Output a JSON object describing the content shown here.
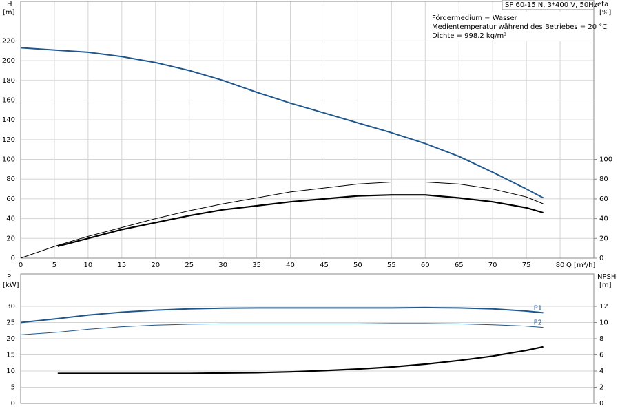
{
  "chart_data": [
    {
      "type": "line",
      "ylabel": "H",
      "yunit": "[m]",
      "y2label": "eta",
      "y2unit": "[%]",
      "xlabel": "Q [m³/h]",
      "info_title": "SP 60-15 N, 3*400 V, 50Hz",
      "info_lines": [
        "Fördermedium = Wasser",
        "Medientemperatur während des Betriebes = 20 °C",
        "Dichte = 998.2 kg/m³"
      ],
      "x": [
        0,
        5.5,
        10,
        15,
        20,
        25,
        30,
        35,
        40,
        45,
        50,
        55,
        60,
        65,
        70,
        75,
        77.5
      ],
      "xlim": [
        0,
        85
      ],
      "xticks": [
        0,
        5,
        10,
        15,
        20,
        25,
        30,
        35,
        40,
        45,
        50,
        55,
        60,
        65,
        70,
        75,
        80
      ],
      "ylim": [
        0,
        260
      ],
      "yticks": [
        0,
        20,
        40,
        60,
        80,
        100,
        120,
        140,
        160,
        180,
        200,
        220
      ],
      "y2lim": [
        0,
        260
      ],
      "y2ticks": [
        0,
        20,
        40,
        60,
        80,
        100
      ],
      "grid": true,
      "series": [
        {
          "color": "#1f568c",
          "line_width": 2,
          "values": [
            213,
            210.5,
            208.5,
            204,
            198,
            190,
            180,
            168,
            157,
            147,
            137,
            127,
            116,
            103,
            87,
            70,
            61
          ]
        },
        {
          "color": "#000000",
          "line_width": 1,
          "axis": "y2",
          "values": [
            0,
            13,
            22,
            31,
            40,
            48,
            55,
            61,
            67,
            71,
            75,
            77,
            77,
            75,
            70,
            62,
            55
          ]
        },
        {
          "color": "#000000",
          "line_width": 2.2,
          "axis": "y2",
          "values": [
            null,
            12,
            20,
            29,
            36,
            43,
            49,
            53,
            57,
            60,
            63,
            64,
            64,
            61,
            57,
            51,
            46
          ]
        }
      ]
    },
    {
      "type": "line",
      "ylabel": "P",
      "yunit": "[kW]",
      "y2label": "NPSH",
      "y2unit": "[m]",
      "x": [
        0,
        5.5,
        10,
        15,
        20,
        25,
        30,
        35,
        40,
        45,
        50,
        55,
        60,
        65,
        70,
        75,
        77.5
      ],
      "xlim": [
        0,
        85
      ],
      "ylim": [
        0,
        40
      ],
      "yticks": [
        0,
        5,
        10,
        15,
        20,
        25,
        30
      ],
      "y2lim": [
        0,
        16
      ],
      "y2ticks": [
        0,
        2,
        4,
        6,
        8,
        10,
        12
      ],
      "grid": true,
      "series": [
        {
          "name": "P1",
          "color": "#1f568c",
          "line_width": 2,
          "values": [
            25,
            26.2,
            27.3,
            28.2,
            28.8,
            29.2,
            29.4,
            29.5,
            29.5,
            29.5,
            29.5,
            29.5,
            29.6,
            29.5,
            29.2,
            28.5,
            28.0
          ]
        },
        {
          "name": "P2",
          "color": "#1f568c",
          "line_width": 1,
          "values": [
            21.2,
            22,
            22.9,
            23.7,
            24.2,
            24.5,
            24.6,
            24.6,
            24.6,
            24.6,
            24.6,
            24.7,
            24.7,
            24.6,
            24.3,
            23.9,
            23.5
          ]
        },
        {
          "color": "#000000",
          "line_width": 2.2,
          "axis": "y2",
          "values": [
            null,
            3.7,
            3.7,
            3.7,
            3.7,
            3.7,
            3.75,
            3.8,
            3.9,
            4.05,
            4.25,
            4.5,
            4.85,
            5.3,
            5.85,
            6.55,
            7.0
          ]
        }
      ]
    }
  ]
}
